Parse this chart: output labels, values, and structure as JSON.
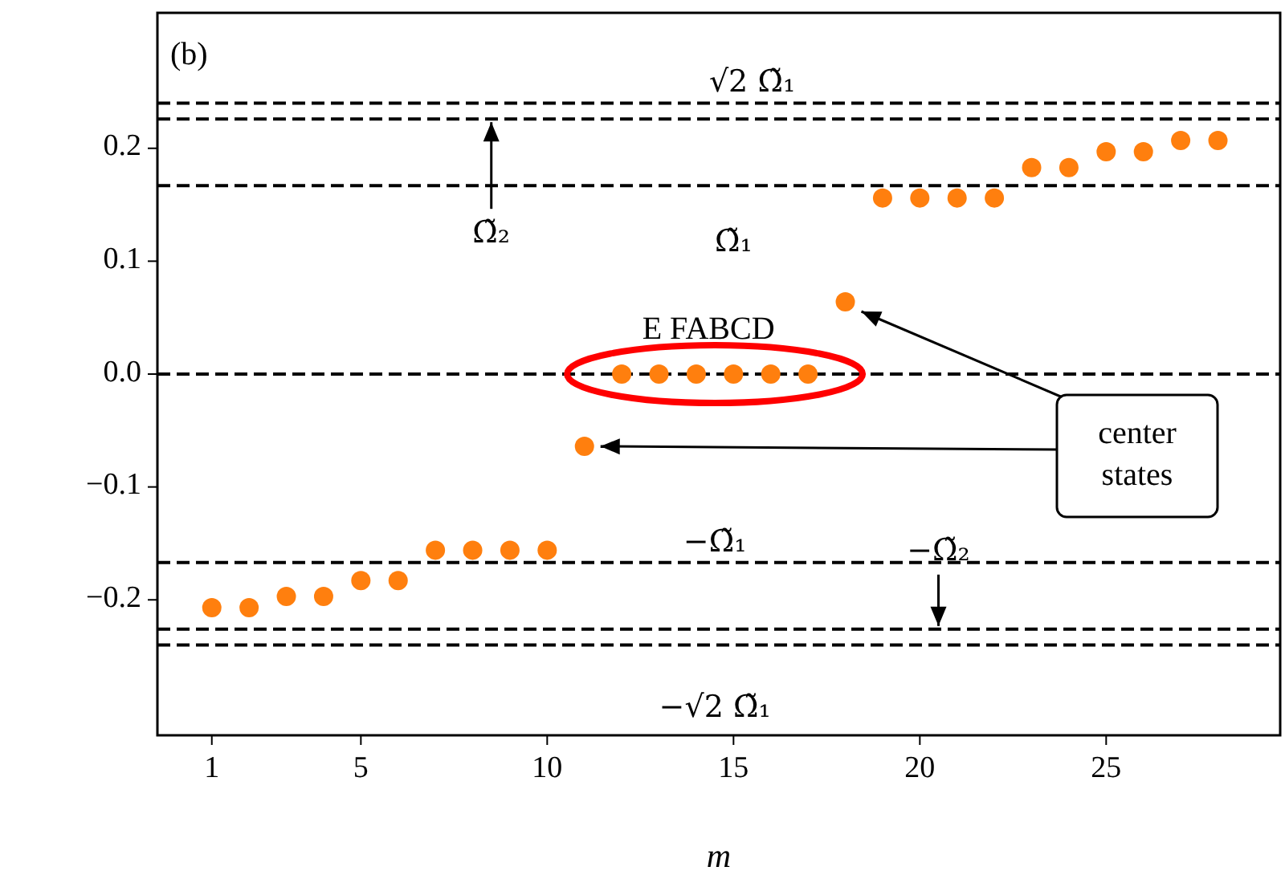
{
  "chart_data": {
    "type": "scatter",
    "xlabel": "m",
    "x": [
      1,
      2,
      3,
      4,
      5,
      6,
      7,
      8,
      9,
      10,
      11,
      12,
      13,
      14,
      15,
      16,
      17,
      18,
      19,
      20,
      21,
      22,
      23,
      24,
      25,
      26,
      27,
      28
    ],
    "series": [
      {
        "color": "#ff7f0e",
        "values": [
          -0.207,
          -0.207,
          -0.197,
          -0.197,
          -0.183,
          -0.183,
          -0.156,
          -0.156,
          -0.156,
          -0.156,
          -0.064,
          0,
          0,
          0,
          0,
          0,
          0,
          0.064,
          0.156,
          0.156,
          0.156,
          0.156,
          0.183,
          0.183,
          0.197,
          0.197,
          0.207,
          0.207
        ]
      }
    ],
    "xlim": [
      -0.46,
      29.67
    ],
    "xticks": [
      1,
      5,
      10,
      15,
      20,
      25
    ],
    "ylim": [
      -0.32,
      0.32
    ],
    "yticks": [
      {
        "value": -0.2,
        "label": "−0.2"
      },
      {
        "value": -0.1,
        "label": "−0.1"
      },
      {
        "value": 0,
        "label": "0.0"
      },
      0.1,
      0.2
    ],
    "marker": "circle",
    "grid": false,
    "ref_lines": [
      {
        "axis": "y",
        "value": 0.24,
        "label": "√2 Ω̃₁",
        "color": "#000000",
        "line_style": "dashed"
      },
      {
        "axis": "y",
        "value": 0.226,
        "label": "Ω̃₂",
        "color": "#000000",
        "line_style": "dashed"
      },
      {
        "axis": "y",
        "value": 0.167,
        "label": "Ω̃₁",
        "color": "#000000",
        "line_style": "dashed"
      },
      {
        "axis": "y",
        "value": 0,
        "color": "#000000",
        "line_style": "dashed"
      },
      {
        "axis": "y",
        "value": -0.167,
        "label": "−Ω̃₁",
        "color": "#000000",
        "line_style": "dashed"
      },
      {
        "axis": "y",
        "value": -0.226,
        "label": "−Ω̃₂",
        "color": "#000000",
        "line_style": "dashed"
      },
      {
        "axis": "y",
        "value": -0.24,
        "label": "−√2 Ω̃₁",
        "color": "#000000",
        "line_style": "dashed"
      }
    ],
    "annotations": [
      "(b)",
      {
        "text": "E FABCD",
        "x": 14.5,
        "y": 0
      },
      "center states"
    ]
  }
}
